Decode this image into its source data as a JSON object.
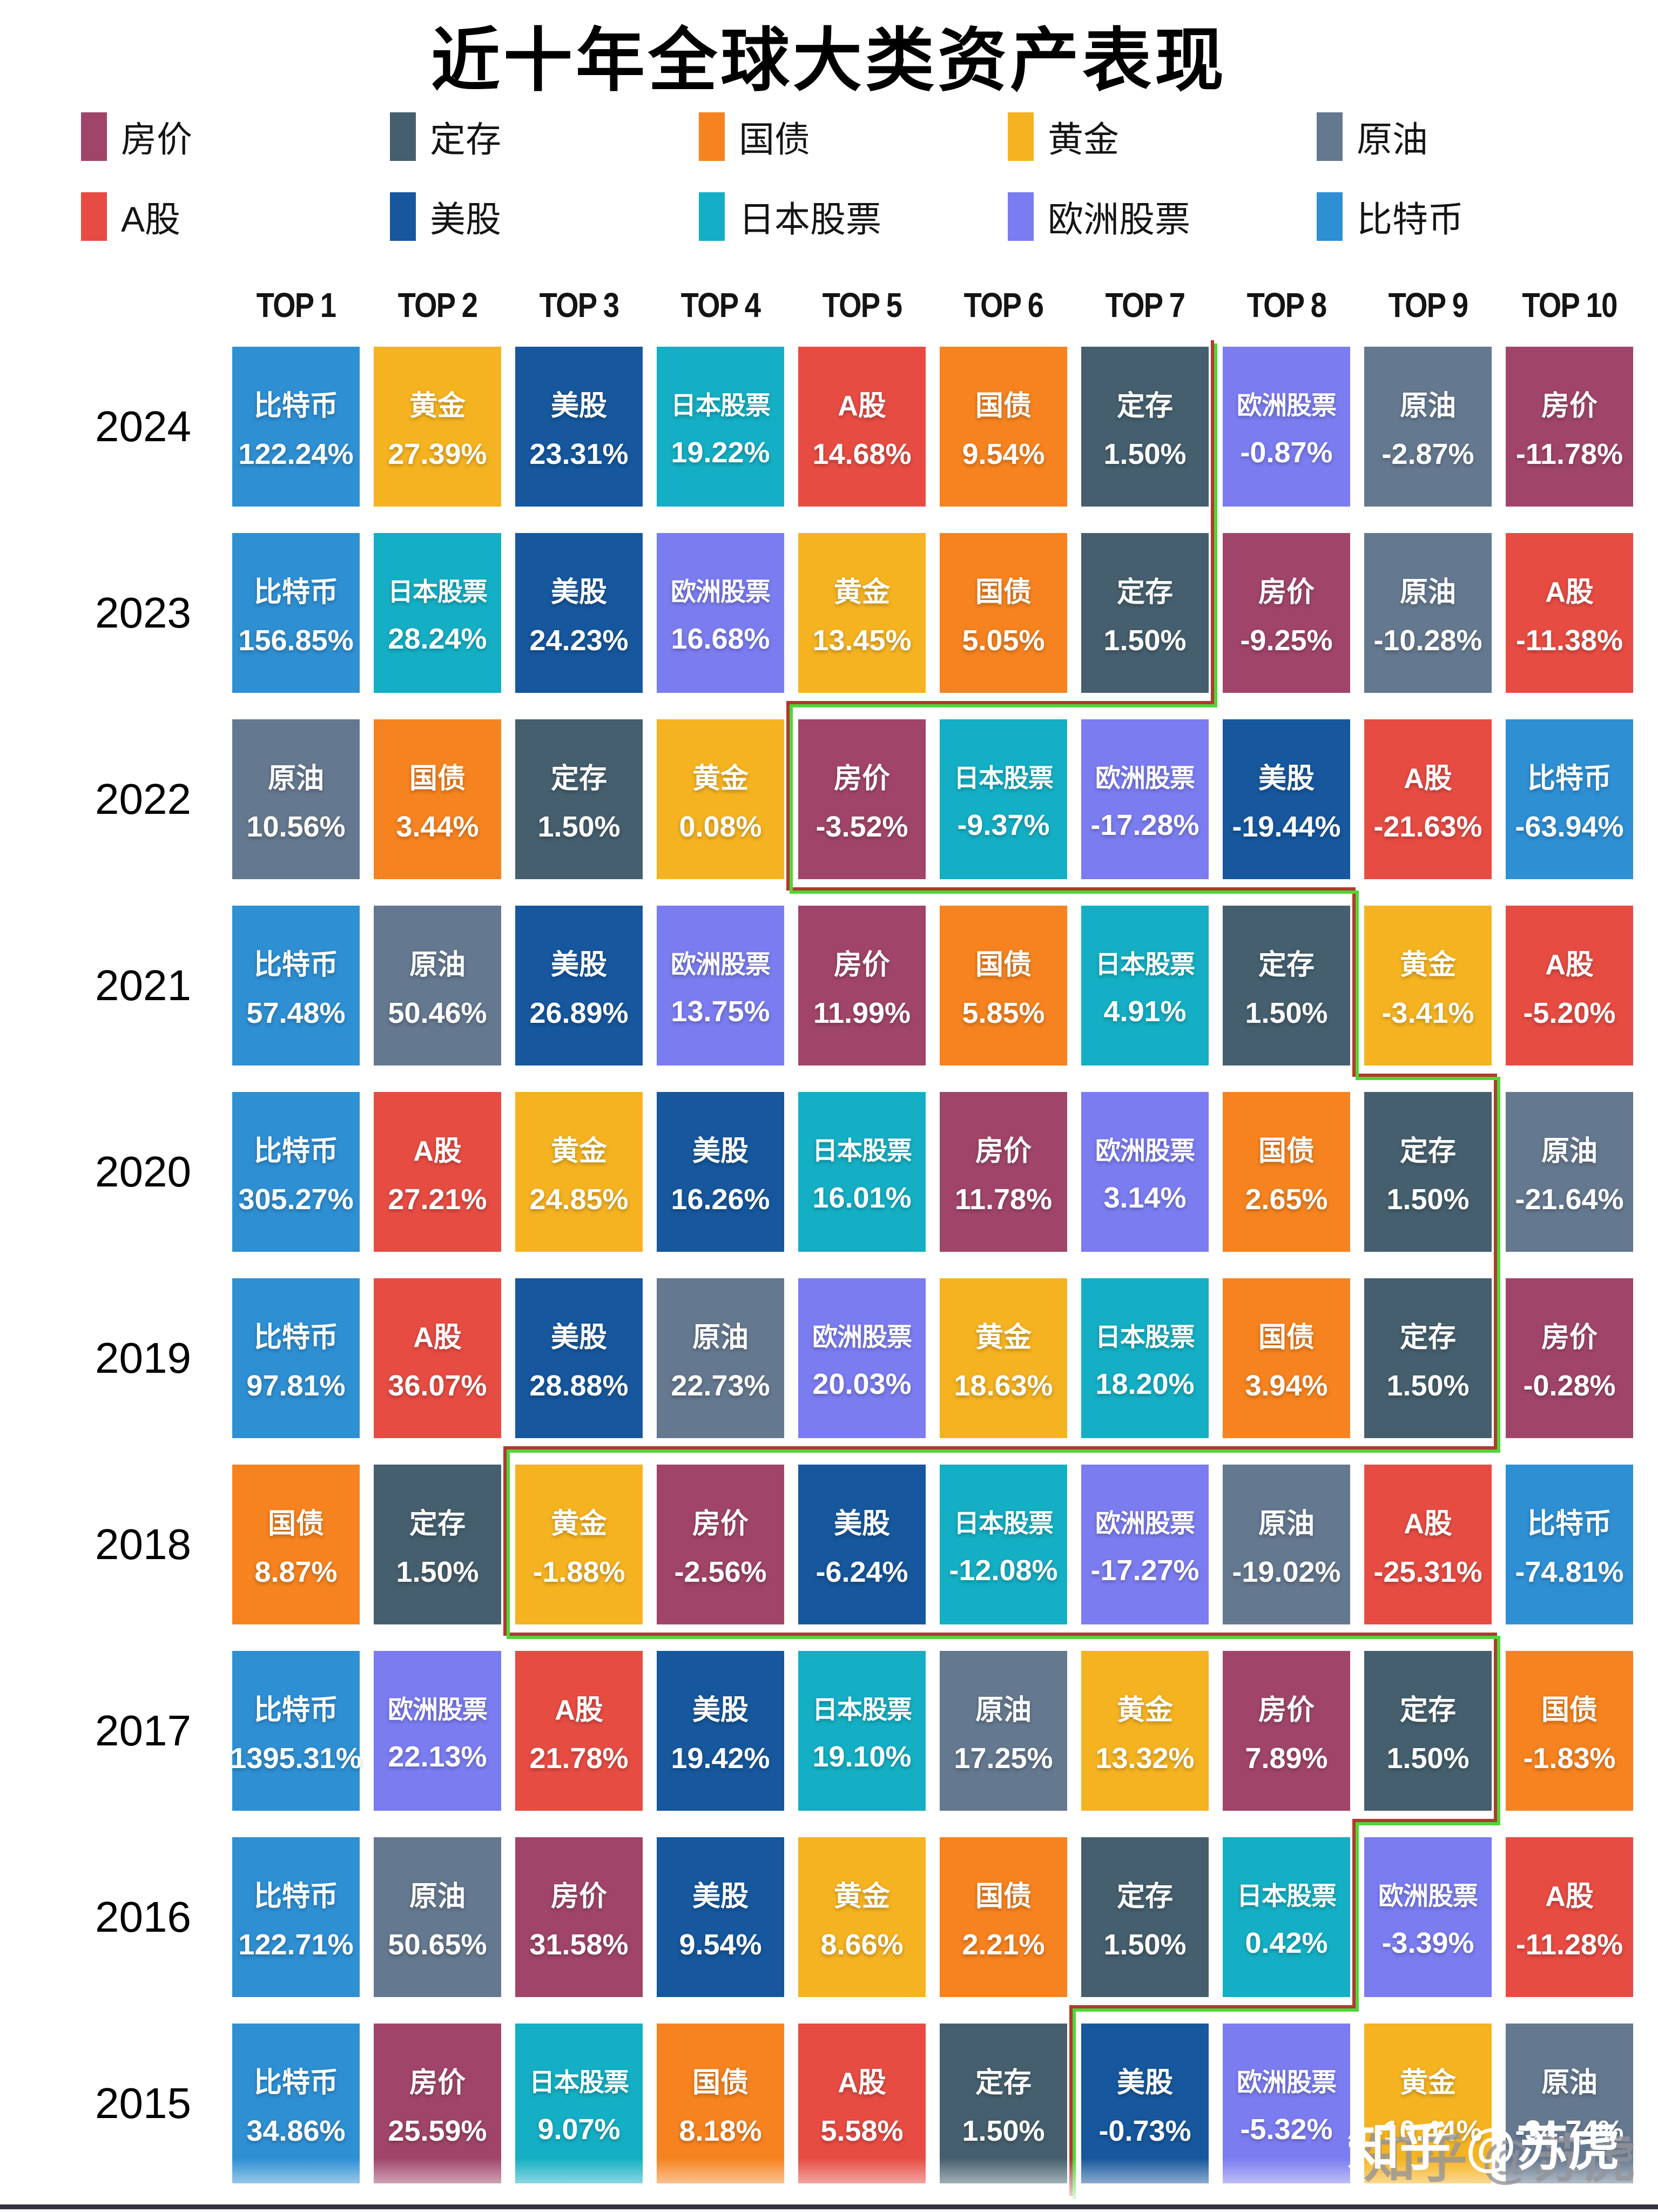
{
  "title": "近十年全球大类资产表现",
  "watermark": "知乎 @苏虎",
  "asset_colors": {
    "房价": "#A04569",
    "定存": "#455F6E",
    "国债": "#F6831F",
    "黄金": "#F5B321",
    "原油": "#64788F",
    "A股": "#E74C43",
    "美股": "#16579D",
    "日本股票": "#14AFC4",
    "欧洲股票": "#7B7CF0",
    "比特币": "#2E8FD3"
  },
  "legend_rows": [
    [
      "房价",
      "定存",
      "国债",
      "黄金",
      "原油"
    ],
    [
      "A股",
      "美股",
      "日本股票",
      "欧洲股票",
      "比特币"
    ]
  ],
  "col_headers": [
    "TOP 1",
    "TOP 2",
    "TOP 3",
    "TOP 4",
    "TOP 5",
    "TOP 6",
    "TOP 7",
    "TOP 8",
    "TOP 9",
    "TOP 10"
  ],
  "chart_data": {
    "type": "heatmap",
    "title": "近十年全球大类资产表现",
    "columns": [
      "TOP 1",
      "TOP 2",
      "TOP 3",
      "TOP 4",
      "TOP 5",
      "TOP 6",
      "TOP 7",
      "TOP 8",
      "TOP 9",
      "TOP 10"
    ],
    "unit": "%",
    "rows": [
      {
        "year": "2024",
        "cells": [
          [
            "比特币",
            122.24
          ],
          [
            "黄金",
            27.39
          ],
          [
            "美股",
            23.31
          ],
          [
            "日本股票",
            19.22
          ],
          [
            "A股",
            14.68
          ],
          [
            "国债",
            9.54
          ],
          [
            "定存",
            1.5
          ],
          [
            "欧洲股票",
            -0.87
          ],
          [
            "原油",
            -2.87
          ],
          [
            "房价",
            -11.78
          ]
        ]
      },
      {
        "year": "2023",
        "cells": [
          [
            "比特币",
            156.85
          ],
          [
            "日本股票",
            28.24
          ],
          [
            "美股",
            24.23
          ],
          [
            "欧洲股票",
            16.68
          ],
          [
            "黄金",
            13.45
          ],
          [
            "国债",
            5.05
          ],
          [
            "定存",
            1.5
          ],
          [
            "房价",
            -9.25
          ],
          [
            "原油",
            -10.28
          ],
          [
            "A股",
            -11.38
          ]
        ]
      },
      {
        "year": "2022",
        "cells": [
          [
            "原油",
            10.56
          ],
          [
            "国债",
            3.44
          ],
          [
            "定存",
            1.5
          ],
          [
            "黄金",
            0.08
          ],
          [
            "房价",
            -3.52
          ],
          [
            "日本股票",
            -9.37
          ],
          [
            "欧洲股票",
            -17.28
          ],
          [
            "美股",
            -19.44
          ],
          [
            "A股",
            -21.63
          ],
          [
            "比特币",
            -63.94
          ]
        ]
      },
      {
        "year": "2021",
        "cells": [
          [
            "比特币",
            57.48
          ],
          [
            "原油",
            50.46
          ],
          [
            "美股",
            26.89
          ],
          [
            "欧洲股票",
            13.75
          ],
          [
            "房价",
            11.99
          ],
          [
            "国债",
            5.85
          ],
          [
            "日本股票",
            4.91
          ],
          [
            "定存",
            1.5
          ],
          [
            "黄金",
            -3.41
          ],
          [
            "A股",
            -5.2
          ]
        ]
      },
      {
        "year": "2020",
        "cells": [
          [
            "比特币",
            305.27
          ],
          [
            "A股",
            27.21
          ],
          [
            "黄金",
            24.85
          ],
          [
            "美股",
            16.26
          ],
          [
            "日本股票",
            16.01
          ],
          [
            "房价",
            11.78
          ],
          [
            "欧洲股票",
            3.14
          ],
          [
            "国债",
            2.65
          ],
          [
            "定存",
            1.5
          ],
          [
            "原油",
            -21.64
          ]
        ]
      },
      {
        "year": "2019",
        "cells": [
          [
            "比特币",
            97.81
          ],
          [
            "A股",
            36.07
          ],
          [
            "美股",
            28.88
          ],
          [
            "原油",
            22.73
          ],
          [
            "欧洲股票",
            20.03
          ],
          [
            "黄金",
            18.63
          ],
          [
            "日本股票",
            18.2
          ],
          [
            "国债",
            3.94
          ],
          [
            "定存",
            1.5
          ],
          [
            "房价",
            -0.28
          ]
        ]
      },
      {
        "year": "2018",
        "cells": [
          [
            "国债",
            8.87
          ],
          [
            "定存",
            1.5
          ],
          [
            "黄金",
            -1.88
          ],
          [
            "房价",
            -2.56
          ],
          [
            "美股",
            -6.24
          ],
          [
            "日本股票",
            -12.08
          ],
          [
            "欧洲股票",
            -17.27
          ],
          [
            "原油",
            -19.02
          ],
          [
            "A股",
            -25.31
          ],
          [
            "比特币",
            -74.81
          ]
        ]
      },
      {
        "year": "2017",
        "cells": [
          [
            "比特币",
            1395.31
          ],
          [
            "欧洲股票",
            22.13
          ],
          [
            "A股",
            21.78
          ],
          [
            "美股",
            19.42
          ],
          [
            "日本股票",
            19.1
          ],
          [
            "原油",
            17.25
          ],
          [
            "黄金",
            13.32
          ],
          [
            "房价",
            7.89
          ],
          [
            "定存",
            1.5
          ],
          [
            "国债",
            -1.83
          ]
        ]
      },
      {
        "year": "2016",
        "cells": [
          [
            "比特币",
            122.71
          ],
          [
            "原油",
            50.65
          ],
          [
            "房价",
            31.58
          ],
          [
            "美股",
            9.54
          ],
          [
            "黄金",
            8.66
          ],
          [
            "国债",
            2.21
          ],
          [
            "定存",
            1.5
          ],
          [
            "日本股票",
            0.42
          ],
          [
            "欧洲股票",
            -3.39
          ],
          [
            "A股",
            -11.28
          ]
        ]
      },
      {
        "year": "2015",
        "cells": [
          [
            "比特币",
            34.86
          ],
          [
            "房价",
            25.59
          ],
          [
            "日本股票",
            9.07
          ],
          [
            "国债",
            8.18
          ],
          [
            "A股",
            5.58
          ],
          [
            "定存",
            1.5
          ],
          [
            "美股",
            -0.73
          ],
          [
            "欧洲股票",
            -5.32
          ],
          [
            "黄金",
            -10.44
          ],
          [
            "原油",
            -34.74
          ]
        ]
      }
    ],
    "positive_negative_divider_after_top": [
      7,
      7,
      4,
      8,
      9,
      9,
      2,
      9,
      8,
      6
    ],
    "divider_colors": {
      "inner_red": "#B03A2E",
      "outer_green": "#4FD637"
    }
  }
}
